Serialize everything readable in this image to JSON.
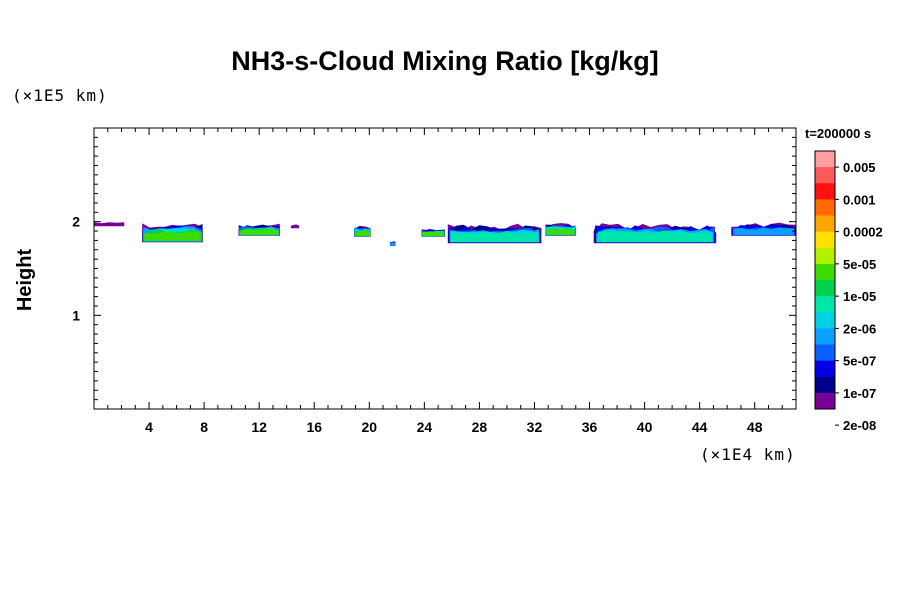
{
  "chart_data": {
    "type": "heatmap",
    "title": "NH3-s-Cloud Mixing Ratio [kg/kg]",
    "ylabel": "Height",
    "y_unit": "(×1E5 km)",
    "x_unit": "(×1E4 km)",
    "time_label": "t=200000 s",
    "xlim": [
      0,
      51
    ],
    "ylim": [
      0,
      3
    ],
    "x_ticks": [
      "4",
      "8",
      "12",
      "16",
      "20",
      "24",
      "28",
      "32",
      "36",
      "40",
      "44",
      "48"
    ],
    "x_tick_values": [
      4,
      8,
      12,
      16,
      20,
      24,
      28,
      32,
      36,
      40,
      44,
      48
    ],
    "y_ticks": [
      "1",
      "2"
    ],
    "y_tick_values": [
      1,
      2
    ],
    "colorbar": {
      "labels": [
        "0.005",
        "0.001",
        "0.0002",
        "5e-05",
        "1e-05",
        "2e-06",
        "5e-07",
        "1e-07",
        "2e-08"
      ],
      "colors": [
        "#ffa0a0",
        "#ff5a5a",
        "#ff1010",
        "#ff6a00",
        "#ffa500",
        "#ffe100",
        "#b4f000",
        "#3cdc00",
        "#00d250",
        "#00e6aa",
        "#00d2e6",
        "#0aa0ff",
        "#0a60ff",
        "#0000e6",
        "#00008c",
        "#780096"
      ]
    },
    "cloud_patches": [
      {
        "x": [
          0,
          2.2
        ],
        "y": [
          1.95,
          2.0
        ],
        "level": "1e-07"
      },
      {
        "x": [
          3.5,
          7.9
        ],
        "y": [
          1.78,
          1.99
        ],
        "level": "5e-05"
      },
      {
        "x": [
          10.5,
          13.5
        ],
        "y": [
          1.85,
          1.98
        ],
        "level": "5e-05"
      },
      {
        "x": [
          14.3,
          14.9
        ],
        "y": [
          1.93,
          1.97
        ],
        "level": "1e-07"
      },
      {
        "x": [
          18.9,
          20.1
        ],
        "y": [
          1.84,
          1.96
        ],
        "level": "5e-05"
      },
      {
        "x": [
          21.5,
          21.9
        ],
        "y": [
          1.74,
          1.8
        ],
        "level": "2e-06"
      },
      {
        "x": [
          23.8,
          25.5
        ],
        "y": [
          1.84,
          1.93
        ],
        "level": "5e-05"
      },
      {
        "x": [
          25.7,
          32.5
        ],
        "y": [
          1.77,
          1.98
        ],
        "level": "1e-05"
      },
      {
        "x": [
          32.8,
          35.0
        ],
        "y": [
          1.85,
          1.99
        ],
        "level": "5e-05"
      },
      {
        "x": [
          36.3,
          45.2
        ],
        "y": [
          1.77,
          1.99
        ],
        "level": "1e-05"
      },
      {
        "x": [
          46.3,
          51.0
        ],
        "y": [
          1.85,
          1.99
        ],
        "level": "2e-06"
      }
    ]
  }
}
